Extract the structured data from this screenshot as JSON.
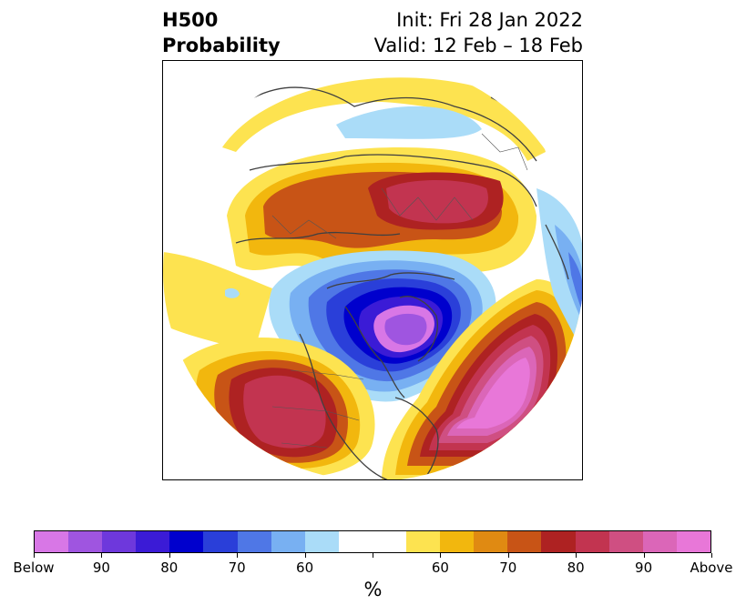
{
  "header": {
    "title_line1": "H500",
    "title_line2": "Probability",
    "init": "Init: Fri 28 Jan 2022",
    "valid": "Valid: 12 Feb – 18 Feb"
  },
  "colorbar": {
    "colors": [
      "#d877e6",
      "#9f55e0",
      "#6e38dc",
      "#3b1bd6",
      "#0000cd",
      "#2a3fd9",
      "#4f77e6",
      "#78b0f2",
      "#aadcf8",
      "#ffffff",
      "#ffffff",
      "#fde350",
      "#f2b70e",
      "#e08a12",
      "#c85416",
      "#ae2222",
      "#c23450",
      "#cf4f82",
      "#db66b8",
      "#e877d8"
    ],
    "labels": [
      "Below",
      "90",
      "80",
      "70",
      "60",
      "60",
      "70",
      "80",
      "90",
      "Above"
    ],
    "unit": "%"
  }
}
